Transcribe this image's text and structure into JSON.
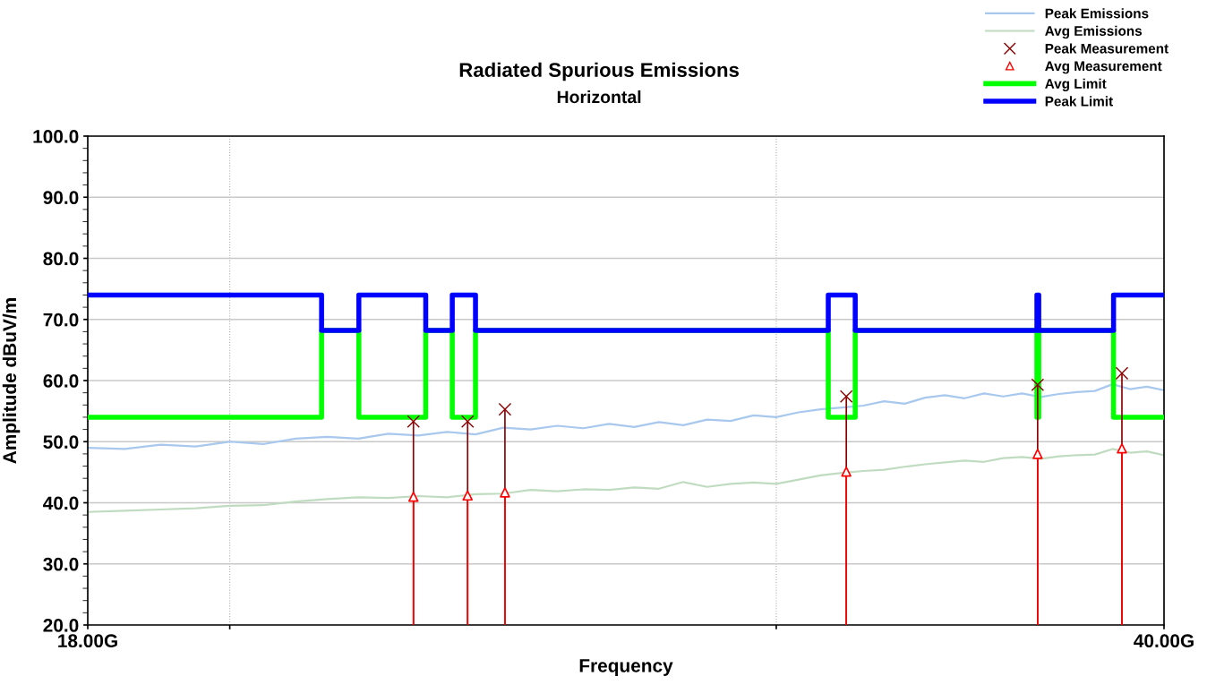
{
  "chart_data": {
    "type": "line",
    "title": "Radiated Spurious Emissions",
    "subtitle": "Horizontal",
    "xlabel": "Frequency",
    "ylabel": "Amplitude dBuV/m",
    "log": "x",
    "xlim": [
      18,
      40
    ],
    "xticks": [
      {
        "value": 18,
        "label": "18.00G"
      },
      {
        "value": 20,
        "label": null
      },
      {
        "value": 30,
        "label": null
      },
      {
        "value": 40,
        "label": "40.00G"
      }
    ],
    "ylim": [
      20,
      100
    ],
    "yticks": [
      {
        "value": 20,
        "label": "20.0"
      },
      {
        "value": 30,
        "label": "30.0"
      },
      {
        "value": 40,
        "label": "40.0"
      },
      {
        "value": 50,
        "label": "50.0"
      },
      {
        "value": 60,
        "label": "60.0"
      },
      {
        "value": 70,
        "label": "70.0"
      },
      {
        "value": 80,
        "label": "80.0"
      },
      {
        "value": 90,
        "label": "90.0"
      },
      {
        "value": 100,
        "label": "100.0"
      }
    ],
    "grid": true,
    "legend": "top right",
    "series": [
      {
        "name": "Peak Emissions",
        "color": "#a8c8ee",
        "x": [
          18,
          18.5,
          19,
          19.5,
          20,
          20.5,
          21,
          21.5,
          22,
          22.5,
          23,
          23.5,
          24,
          24.5,
          25,
          25.5,
          26,
          26.5,
          27,
          27.5,
          28,
          28.5,
          29,
          29.5,
          30,
          30.5,
          31,
          31.5,
          32,
          32.5,
          33,
          33.5,
          34,
          34.5,
          35,
          35.5,
          36,
          36.5,
          37,
          37.5,
          38,
          38.5,
          39,
          39.5,
          40
        ],
        "values": [
          49,
          48.8,
          49.5,
          49.2,
          50,
          49.6,
          50.5,
          50.8,
          50.5,
          51.3,
          51,
          51.6,
          51.2,
          52.3,
          52,
          52.6,
          52.2,
          52.9,
          52.4,
          53.2,
          52.7,
          53.6,
          53.4,
          54.3,
          54,
          54.8,
          55.3,
          55.6,
          55.9,
          56.6,
          56.2,
          57.2,
          57.6,
          57.1,
          57.9,
          57.4,
          57.9,
          57.3,
          57.8,
          58.1,
          58.3,
          59.4,
          58.6,
          59,
          58.4
        ]
      },
      {
        "name": "Avg Emissions",
        "color": "#c0dcc0",
        "x": [
          18,
          18.5,
          19,
          19.5,
          20,
          20.5,
          21,
          21.5,
          22,
          22.5,
          23,
          23.5,
          24,
          24.5,
          25,
          25.5,
          26,
          26.5,
          27,
          27.5,
          28,
          28.5,
          29,
          29.5,
          30,
          30.5,
          31,
          31.5,
          32,
          32.5,
          33,
          33.5,
          34,
          34.5,
          35,
          35.5,
          36,
          36.5,
          37,
          37.5,
          38,
          38.5,
          39,
          39.5,
          40
        ],
        "values": [
          38.5,
          38.7,
          38.9,
          39.1,
          39.5,
          39.6,
          40.2,
          40.6,
          40.9,
          40.8,
          41.1,
          40.9,
          41.4,
          41.5,
          42.1,
          41.9,
          42.2,
          42.1,
          42.5,
          42.3,
          43.4,
          42.6,
          43.1,
          43.3,
          43.1,
          43.8,
          44.5,
          44.9,
          45.2,
          45.4,
          45.9,
          46.3,
          46.6,
          46.9,
          46.7,
          47.3,
          47.5,
          47.2,
          47.6,
          47.8,
          47.9,
          48.8,
          48.2,
          48.4,
          47.8
        ]
      },
      {
        "name": "Peak Measurement",
        "type": "lollipop",
        "marker": "cross",
        "color": "#8b0000",
        "x": [
          22.92,
          23.86,
          24.53,
          31.6,
          36.42,
          38.77
        ],
        "values": [
          53.3,
          53.3,
          55.3,
          57.4,
          59.3,
          61.2
        ]
      },
      {
        "name": "Avg Measurement",
        "type": "lollipop",
        "marker": "triangle",
        "color": "#ff0000",
        "x": [
          22.92,
          23.86,
          24.53,
          31.6,
          36.42,
          38.77
        ],
        "values": [
          41.0,
          41.2,
          41.7,
          45.1,
          48.0,
          48.9
        ]
      },
      {
        "name": "Avg Limit",
        "type": "step",
        "color": "#00ff00",
        "x": [
          18,
          21.41,
          22.01,
          23.13,
          23.59,
          24.0,
          31.18,
          31.81,
          36.4,
          36.45,
          38.53,
          40
        ],
        "values": [
          54,
          68.2,
          54,
          68.2,
          54,
          68.2,
          54,
          68.2,
          54,
          68.2,
          54,
          54
        ]
      },
      {
        "name": "Peak Limit",
        "type": "step",
        "color": "#0000ff",
        "x": [
          18,
          21.41,
          22.01,
          23.13,
          23.59,
          24.0,
          31.18,
          31.81,
          36.4,
          36.45,
          38.53,
          40
        ],
        "values": [
          74,
          68.2,
          74,
          68.2,
          74,
          68.2,
          74,
          68.2,
          74,
          68.2,
          74,
          74
        ]
      }
    ]
  }
}
